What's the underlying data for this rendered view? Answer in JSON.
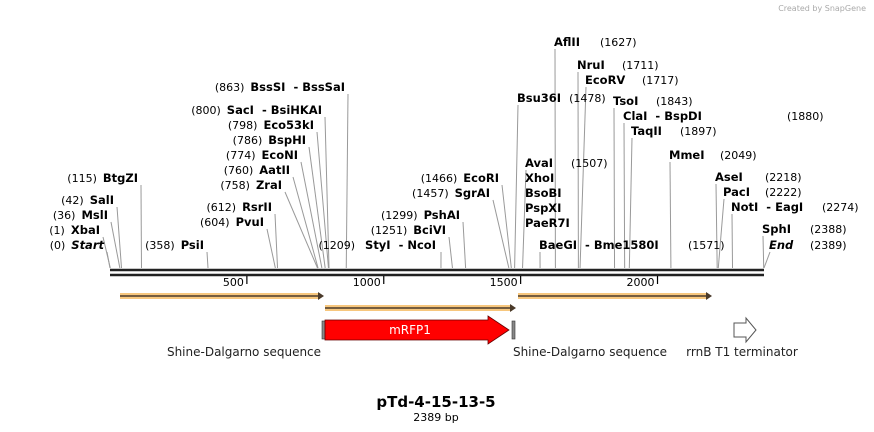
{
  "watermark": "Created by SnapGene",
  "title": "pTd-4-15-13-5",
  "length_label": "2389 bp",
  "total_bp": 2389,
  "ruler_ticks": [
    "500",
    "1000",
    "1500",
    "2000"
  ],
  "sites": [
    {
      "name": "Start",
      "pos": "(0)"
    },
    {
      "name": "XbaI",
      "pos": "(1)"
    },
    {
      "name": "MslI",
      "pos": "(36)"
    },
    {
      "name": "SalI",
      "pos": "(42)"
    },
    {
      "name": "BtgZI",
      "pos": "(115)"
    },
    {
      "name": "PsiI",
      "pos": "(358)"
    },
    {
      "name": "PvuI",
      "pos": "(604)"
    },
    {
      "name": "RsrII",
      "pos": "(612)"
    },
    {
      "name": "ZraI",
      "pos": "(758)"
    },
    {
      "name": "AatII",
      "pos": "(760)"
    },
    {
      "name": "EcoNI",
      "pos": "(774)"
    },
    {
      "name": "BspHI",
      "pos": "(786)"
    },
    {
      "name": "Eco53kI",
      "pos": "(798)"
    },
    {
      "name": "SacI  - BsiHKAI",
      "pos": "(800)"
    },
    {
      "name": "BssSI  - BssSaI",
      "pos": "(863)"
    },
    {
      "name": "StyI  - NcoI",
      "pos": "(1209)"
    },
    {
      "name": "BciVI",
      "pos": "(1251)"
    },
    {
      "name": "PshAI",
      "pos": "(1299)"
    },
    {
      "name": "SgrAI",
      "pos": "(1457)"
    },
    {
      "name": "EcoRI",
      "pos": "(1466)"
    },
    {
      "name": "Bsu36I",
      "pos": "(1478)"
    },
    {
      "name": "AvaI",
      "pos": "(1507)"
    },
    {
      "name": "XhoI",
      "pos": ""
    },
    {
      "name": "BsoBI",
      "pos": ""
    },
    {
      "name": "PspXI",
      "pos": ""
    },
    {
      "name": "PaeR7I",
      "pos": ""
    },
    {
      "name": "BaeGI  - Bme1580I",
      "pos": "(1571)"
    },
    {
      "name": "AflII",
      "pos": "(1627)"
    },
    {
      "name": "NruI",
      "pos": "(1711)"
    },
    {
      "name": "EcoRV",
      "pos": "(1717)"
    },
    {
      "name": "TsoI",
      "pos": "(1843)"
    },
    {
      "name": "ClaI  - BspDI",
      "pos": "(1880)"
    },
    {
      "name": "TaqII",
      "pos": "(1897)"
    },
    {
      "name": "MmeI",
      "pos": "(2049)"
    },
    {
      "name": "AseI",
      "pos": "(2218)"
    },
    {
      "name": "PacI",
      "pos": "(2222)"
    },
    {
      "name": "NotI  - EagI",
      "pos": "(2274)"
    },
    {
      "name": "SphI",
      "pos": "(2388)"
    },
    {
      "name": "End",
      "pos": "(2389)"
    }
  ],
  "site_bp": [
    0,
    1,
    36,
    42,
    115,
    358,
    604,
    612,
    758,
    760,
    774,
    786,
    798,
    800,
    863,
    1209,
    1251,
    1299,
    1457,
    1466,
    1478,
    1507,
    1507,
    1507,
    1507,
    1507,
    1571,
    1627,
    1711,
    1717,
    1843,
    1880,
    1897,
    2049,
    2218,
    2222,
    2274,
    2388,
    2389
  ],
  "features": [
    {
      "label": "Shine-Dalgarno sequence"
    },
    {
      "label": "mRFP1",
      "color": "#ff0000"
    },
    {
      "label": "Shine-Dalgarno sequence"
    },
    {
      "label": "rrnB T1 terminator"
    }
  ],
  "primer_color": "#f7c77e"
}
